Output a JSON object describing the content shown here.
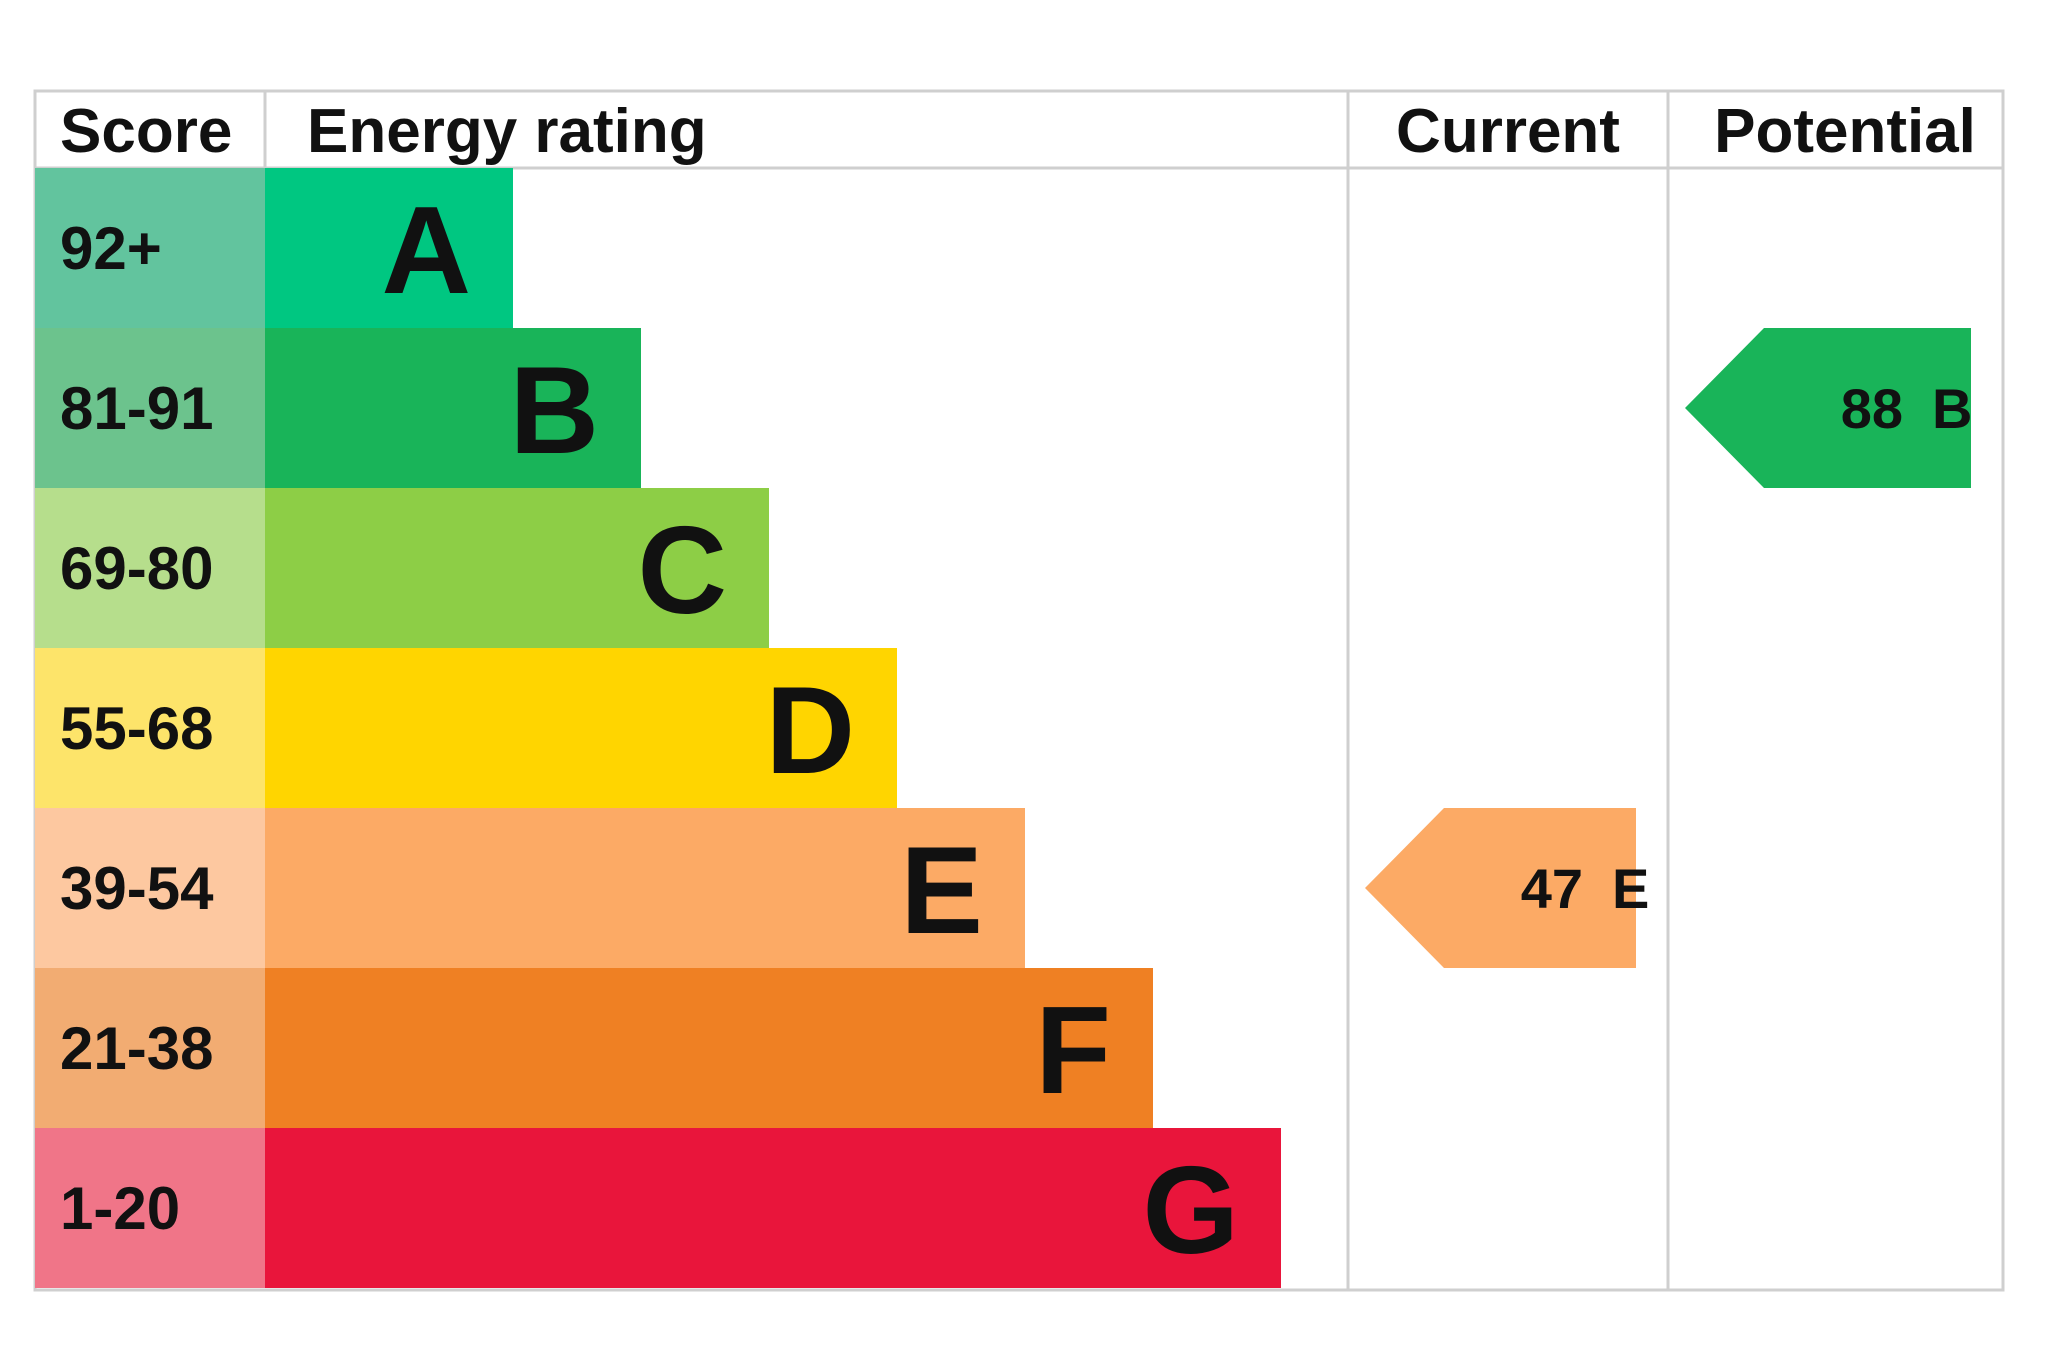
{
  "chart_data": {
    "type": "epc-rating",
    "headers": {
      "score": "Score",
      "rating": "Energy rating",
      "current": "Current",
      "potential": "Potential"
    },
    "bands": [
      {
        "letter": "A",
        "score": "92+",
        "color": "#00c781",
        "score_bg": "#62c49e"
      },
      {
        "letter": "B",
        "score": "81-91",
        "color": "#19b459",
        "score_bg": "#6cc38d"
      },
      {
        "letter": "C",
        "score": "69-80",
        "color": "#8dce46",
        "score_bg": "#b6de8c"
      },
      {
        "letter": "D",
        "score": "55-68",
        "color": "#ffd500",
        "score_bg": "#fde46a"
      },
      {
        "letter": "E",
        "score": "39-54",
        "color": "#fcaa65",
        "score_bg": "#fdc8a0"
      },
      {
        "letter": "F",
        "score": "21-38",
        "color": "#ef8023",
        "score_bg": "#f2ac72"
      },
      {
        "letter": "G",
        "score": "1-20",
        "color": "#e9153b",
        "score_bg": "#f07588"
      }
    ],
    "current": {
      "value": 47,
      "letter": "E",
      "color": "#fcaa65"
    },
    "potential": {
      "value": 88,
      "letter": "B",
      "color": "#19b459"
    }
  }
}
